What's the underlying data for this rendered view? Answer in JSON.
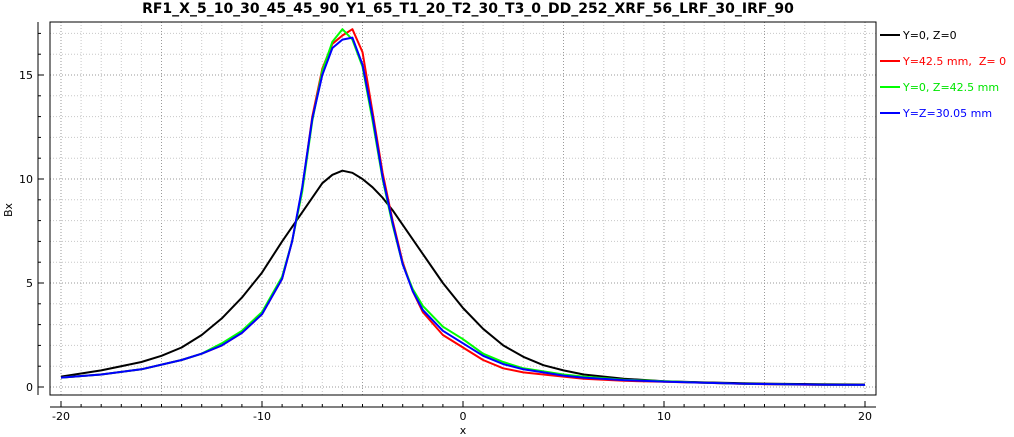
{
  "chart_data": {
    "type": "line",
    "title": "RF1_X_5_10_30_45_45_90_Y1_65_T1_20_T2_30_T3_0_DD_252_XRF_56_LRF_30_IRF_90",
    "xlabel": "x",
    "ylabel": "Bx",
    "xlim": [
      -20,
      20
    ],
    "ylim": [
      -0.3,
      17.6
    ],
    "xticks": [
      -20,
      -10,
      0,
      10,
      20
    ],
    "yticks": [
      0,
      5,
      10,
      15
    ],
    "grid": true,
    "legend_position": "right",
    "series": [
      {
        "name": "Y=0, Z=0",
        "color": "#000000",
        "x": [
          -20,
          -18,
          -16,
          -15,
          -14,
          -13,
          -12,
          -11,
          -10,
          -9,
          -8,
          -7.5,
          -7,
          -6.5,
          -6,
          -5.5,
          -5,
          -4.5,
          -4,
          -3.5,
          -3,
          -2,
          -1,
          0,
          1,
          2,
          3,
          4,
          5,
          6,
          8,
          10,
          12,
          14,
          16,
          18,
          20
        ],
        "y": [
          0.5,
          0.8,
          1.2,
          1.5,
          1.9,
          2.5,
          3.3,
          4.3,
          5.5,
          7.0,
          8.4,
          9.1,
          9.8,
          10.2,
          10.4,
          10.3,
          10.0,
          9.6,
          9.1,
          8.5,
          7.8,
          6.4,
          5.0,
          3.8,
          2.8,
          2.0,
          1.45,
          1.05,
          0.8,
          0.6,
          0.4,
          0.28,
          0.22,
          0.18,
          0.15,
          0.13,
          0.12
        ]
      },
      {
        "name": "Y=42.5 mm,  Z= 0",
        "color": "#ff0000",
        "x": [
          -20,
          -18,
          -16,
          -14,
          -13,
          -12,
          -11,
          -10,
          -9,
          -8.5,
          -8,
          -7.5,
          -7,
          -6.5,
          -6,
          -5.5,
          -5,
          -4.5,
          -4,
          -3.5,
          -3,
          -2.5,
          -2,
          -1,
          0,
          1,
          2,
          3,
          4,
          5,
          6,
          8,
          10,
          12,
          14,
          16,
          18,
          20
        ],
        "y": [
          0.45,
          0.6,
          0.85,
          1.3,
          1.6,
          2.0,
          2.6,
          3.5,
          5.2,
          7.0,
          9.5,
          13.0,
          15.3,
          16.5,
          16.9,
          17.2,
          16.1,
          13.2,
          10.3,
          8.0,
          6.0,
          4.6,
          3.6,
          2.5,
          1.9,
          1.3,
          0.9,
          0.7,
          0.6,
          0.5,
          0.4,
          0.3,
          0.25,
          0.2,
          0.15,
          0.12,
          0.1,
          0.1
        ]
      },
      {
        "name": "Y=0, Z=42.5 mm",
        "color": "#00ff00",
        "x": [
          -20,
          -18,
          -16,
          -14,
          -13,
          -12,
          -11,
          -10,
          -9,
          -8.5,
          -8,
          -7.5,
          -7,
          -6.5,
          -6,
          -5.5,
          -5,
          -4.5,
          -4,
          -3.5,
          -3,
          -2.5,
          -2,
          -1,
          0,
          1,
          2,
          3,
          4,
          5,
          6,
          8,
          10,
          12,
          14,
          16,
          18,
          20
        ],
        "y": [
          0.45,
          0.6,
          0.85,
          1.3,
          1.6,
          2.1,
          2.7,
          3.6,
          5.3,
          7.0,
          9.4,
          12.8,
          15.2,
          16.6,
          17.2,
          16.7,
          15.4,
          12.8,
          10.0,
          7.8,
          5.9,
          4.7,
          3.9,
          2.9,
          2.3,
          1.6,
          1.2,
          0.9,
          0.75,
          0.6,
          0.5,
          0.35,
          0.28,
          0.2,
          0.16,
          0.13,
          0.11,
          0.1
        ]
      },
      {
        "name": "Y=Z=30.05 mm",
        "color": "#0000ff",
        "x": [
          -20,
          -18,
          -16,
          -14,
          -13,
          -12,
          -11,
          -10,
          -9,
          -8.5,
          -8,
          -7.5,
          -7,
          -6.5,
          -6,
          -5.5,
          -5,
          -4.5,
          -4,
          -3.5,
          -3,
          -2.5,
          -2,
          -1,
          0,
          1,
          2,
          3,
          4,
          5,
          6,
          8,
          10,
          12,
          14,
          16,
          18,
          20
        ],
        "y": [
          0.45,
          0.6,
          0.85,
          1.3,
          1.6,
          2.0,
          2.6,
          3.5,
          5.2,
          7.0,
          9.6,
          12.9,
          15.0,
          16.3,
          16.7,
          16.8,
          15.5,
          13.0,
          10.1,
          7.9,
          5.9,
          4.6,
          3.7,
          2.7,
          2.1,
          1.5,
          1.1,
          0.85,
          0.7,
          0.55,
          0.45,
          0.33,
          0.26,
          0.2,
          0.16,
          0.13,
          0.11,
          0.1
        ]
      }
    ]
  }
}
